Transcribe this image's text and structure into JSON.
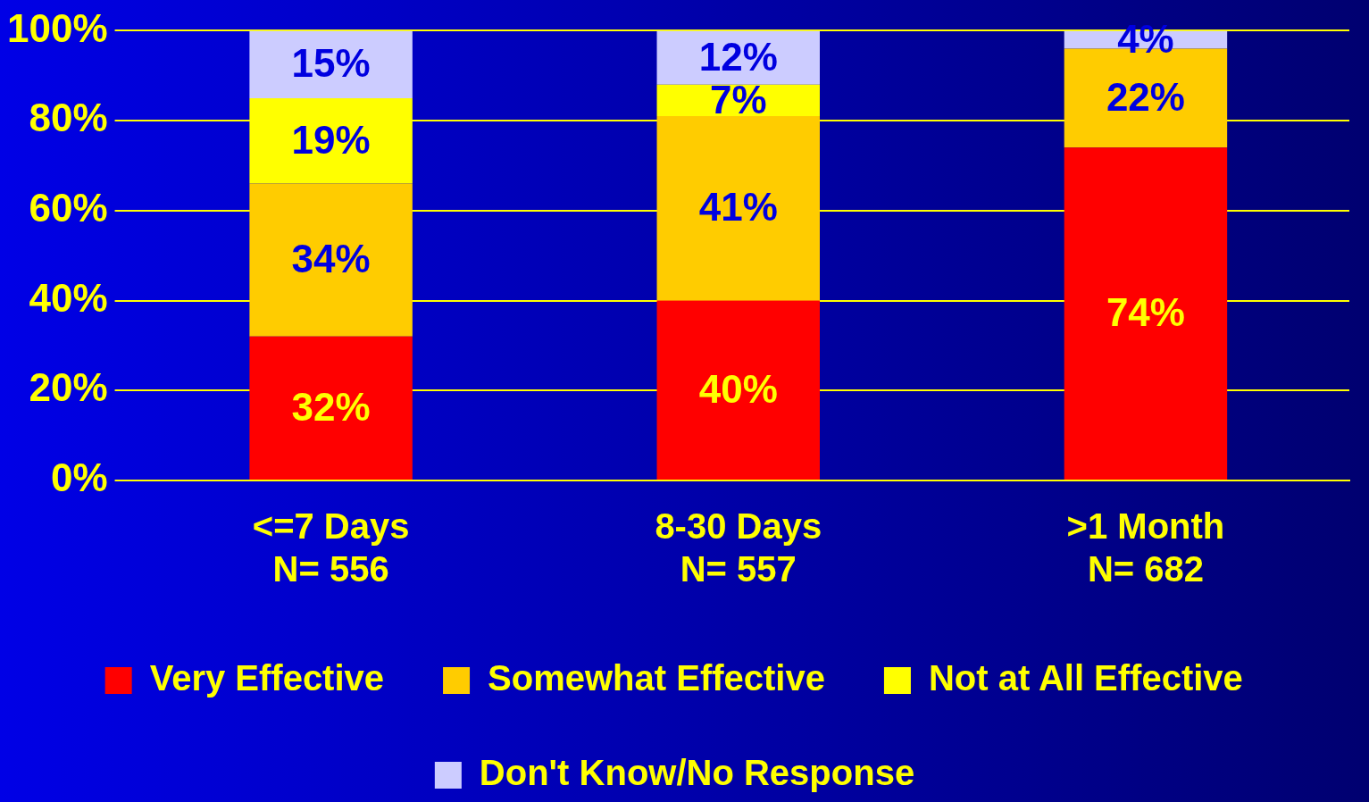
{
  "chart_data": {
    "type": "bar",
    "stacked": true,
    "categories": [
      "<=7 Days\nN= 556",
      "8-30 Days\nN= 557",
      ">1 Month\nN= 682"
    ],
    "series": [
      {
        "name": "Very Effective",
        "color": "#ff0000",
        "values": [
          32,
          40,
          74
        ],
        "value_labels": [
          "32%",
          "40%",
          "74%"
        ]
      },
      {
        "name": "Somewhat Effective",
        "color": "#ffcc00",
        "values": [
          34,
          41,
          22
        ],
        "value_labels": [
          "34%",
          "41%",
          "22%"
        ]
      },
      {
        "name": "Not at All Effective",
        "color": "#ffff00",
        "values": [
          19,
          7,
          null
        ],
        "value_labels": [
          "19%",
          "7%",
          null
        ]
      },
      {
        "name": "Don't Know/No Response",
        "color": "#ccccff",
        "values": [
          15,
          12,
          4
        ],
        "value_labels": [
          "15%",
          "12%",
          "4%"
        ]
      }
    ],
    "ylim": [
      0,
      100
    ],
    "yticks": [
      {
        "value": 0,
        "label": "0%"
      },
      {
        "value": 20,
        "label": "20%"
      },
      {
        "value": 40,
        "label": "40%"
      },
      {
        "value": 60,
        "label": "60%"
      },
      {
        "value": 80,
        "label": "80%"
      },
      {
        "value": 100,
        "label": "100%"
      }
    ],
    "grid": "y",
    "legend": "bottom"
  }
}
